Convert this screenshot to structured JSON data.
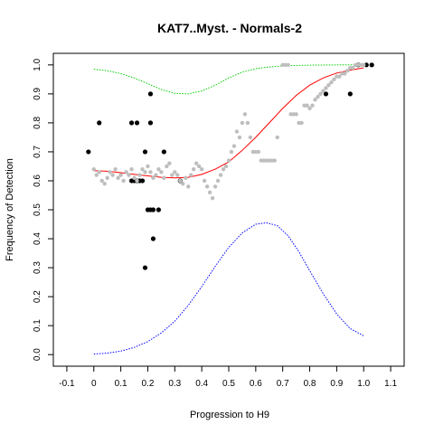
{
  "chart_data": {
    "type": "scatter",
    "title": "KAT7..Myst. - Normals-2",
    "xlabel": "Progression to H9",
    "ylabel": "Frequency of Detection",
    "xlim": [
      -0.15,
      1.15
    ],
    "ylim": [
      -0.04,
      1.04
    ],
    "x_ticks": [
      "-0.1",
      "0",
      "0.1",
      "0.2",
      "0.3",
      "0.4",
      "0.5",
      "0.6",
      "0.7",
      "0.8",
      "0.9",
      "1.0",
      "1.1"
    ],
    "y_ticks": [
      "0.0",
      "0.1",
      "0.2",
      "0.3",
      "0.4",
      "0.5",
      "0.6",
      "0.7",
      "0.8",
      "0.9",
      "1.0"
    ],
    "grid": false,
    "series": [
      {
        "kind": "points",
        "color": "#000000",
        "points": [
          [
            -0.02,
            0.7
          ],
          [
            0.02,
            0.8
          ],
          [
            0.14,
            0.8
          ],
          [
            0.16,
            0.8
          ],
          [
            0.14,
            0.6
          ],
          [
            0.15,
            0.6
          ],
          [
            0.16,
            0.6
          ],
          [
            0.17,
            0.6
          ],
          [
            0.18,
            0.6
          ],
          [
            0.19,
            0.7
          ],
          [
            0.21,
            0.9
          ],
          [
            0.21,
            0.8
          ],
          [
            0.2,
            0.5
          ],
          [
            0.21,
            0.5
          ],
          [
            0.22,
            0.5
          ],
          [
            0.24,
            0.5
          ],
          [
            0.22,
            0.4
          ],
          [
            0.19,
            0.3
          ],
          [
            0.26,
            0.7
          ],
          [
            0.32,
            0.6
          ],
          [
            0.86,
            0.9
          ],
          [
            0.95,
            0.9
          ],
          [
            0.98,
            1.0
          ],
          [
            1.01,
            1.0
          ],
          [
            1.03,
            1.0
          ]
        ]
      },
      {
        "kind": "points",
        "color": "#bebebe",
        "points": [
          [
            0.0,
            0.64
          ],
          [
            0.01,
            0.62
          ],
          [
            0.02,
            0.63
          ],
          [
            0.03,
            0.6
          ],
          [
            0.04,
            0.59
          ],
          [
            0.05,
            0.61
          ],
          [
            0.06,
            0.63
          ],
          [
            0.07,
            0.62
          ],
          [
            0.08,
            0.64
          ],
          [
            0.09,
            0.61
          ],
          [
            0.1,
            0.62
          ],
          [
            0.11,
            0.6
          ],
          [
            0.12,
            0.63
          ],
          [
            0.13,
            0.62
          ],
          [
            0.14,
            0.64
          ],
          [
            0.15,
            0.61
          ],
          [
            0.16,
            0.6
          ],
          [
            0.17,
            0.62
          ],
          [
            0.18,
            0.64
          ],
          [
            0.19,
            0.63
          ],
          [
            0.2,
            0.65
          ],
          [
            0.21,
            0.63
          ],
          [
            0.22,
            0.61
          ],
          [
            0.23,
            0.62
          ],
          [
            0.24,
            0.64
          ],
          [
            0.25,
            0.63
          ],
          [
            0.26,
            0.61
          ],
          [
            0.27,
            0.65
          ],
          [
            0.28,
            0.66
          ],
          [
            0.29,
            0.62
          ],
          [
            0.3,
            0.63
          ],
          [
            0.31,
            0.62
          ],
          [
            0.32,
            0.6
          ],
          [
            0.33,
            0.59
          ],
          [
            0.34,
            0.61
          ],
          [
            0.35,
            0.58
          ],
          [
            0.36,
            0.62
          ],
          [
            0.37,
            0.64
          ],
          [
            0.38,
            0.66
          ],
          [
            0.39,
            0.65
          ],
          [
            0.4,
            0.64
          ],
          [
            0.41,
            0.6
          ],
          [
            0.42,
            0.58
          ],
          [
            0.43,
            0.56
          ],
          [
            0.44,
            0.54
          ],
          [
            0.45,
            0.58
          ],
          [
            0.46,
            0.6
          ],
          [
            0.47,
            0.62
          ],
          [
            0.48,
            0.64
          ],
          [
            0.49,
            0.65
          ],
          [
            0.5,
            0.67
          ],
          [
            0.51,
            0.7
          ],
          [
            0.52,
            0.72
          ],
          [
            0.53,
            0.77
          ],
          [
            0.54,
            0.75
          ],
          [
            0.55,
            0.8
          ],
          [
            0.56,
            0.83
          ],
          [
            0.57,
            0.8
          ],
          [
            0.58,
            0.75
          ],
          [
            0.59,
            0.7
          ],
          [
            0.6,
            0.7
          ],
          [
            0.61,
            0.7
          ],
          [
            0.62,
            0.67
          ],
          [
            0.63,
            0.67
          ],
          [
            0.64,
            0.67
          ],
          [
            0.65,
            0.67
          ],
          [
            0.66,
            0.67
          ],
          [
            0.67,
            0.67
          ],
          [
            0.68,
            0.75
          ],
          [
            0.7,
            1.0
          ],
          [
            0.71,
            1.0
          ],
          [
            0.72,
            1.0
          ],
          [
            0.73,
            0.83
          ],
          [
            0.74,
            0.83
          ],
          [
            0.75,
            0.83
          ],
          [
            0.76,
            0.8
          ],
          [
            0.77,
            0.8
          ],
          [
            0.78,
            0.86
          ],
          [
            0.79,
            0.86
          ],
          [
            0.8,
            0.85
          ],
          [
            0.81,
            0.86
          ],
          [
            0.82,
            0.88
          ],
          [
            0.83,
            0.89
          ],
          [
            0.84,
            0.9
          ],
          [
            0.85,
            0.91
          ],
          [
            0.86,
            0.92
          ],
          [
            0.87,
            0.93
          ],
          [
            0.88,
            0.94
          ],
          [
            0.89,
            0.95
          ],
          [
            0.9,
            0.96
          ],
          [
            0.91,
            0.96
          ],
          [
            0.92,
            0.97
          ],
          [
            0.93,
            0.97
          ],
          [
            0.94,
            0.98
          ],
          [
            0.95,
            0.99
          ],
          [
            0.96,
            0.99
          ],
          [
            0.97,
            1.0
          ],
          [
            0.98,
            1.0
          ],
          [
            0.99,
            1.0
          ],
          [
            1.0,
            1.0
          ]
        ]
      },
      {
        "kind": "line",
        "color": "#ff0000",
        "dashed": false,
        "points": [
          [
            0.0,
            0.635
          ],
          [
            0.05,
            0.633
          ],
          [
            0.1,
            0.628
          ],
          [
            0.15,
            0.622
          ],
          [
            0.2,
            0.617
          ],
          [
            0.25,
            0.612
          ],
          [
            0.3,
            0.61
          ],
          [
            0.35,
            0.612
          ],
          [
            0.4,
            0.622
          ],
          [
            0.45,
            0.64
          ],
          [
            0.5,
            0.665
          ],
          [
            0.55,
            0.705
          ],
          [
            0.6,
            0.75
          ],
          [
            0.65,
            0.8
          ],
          [
            0.7,
            0.85
          ],
          [
            0.75,
            0.895
          ],
          [
            0.8,
            0.93
          ],
          [
            0.85,
            0.955
          ],
          [
            0.9,
            0.972
          ],
          [
            0.95,
            0.982
          ],
          [
            1.0,
            0.99
          ]
        ]
      },
      {
        "kind": "line",
        "color": "#00cc00",
        "dashed": true,
        "points": [
          [
            0.0,
            0.985
          ],
          [
            0.05,
            0.98
          ],
          [
            0.1,
            0.97
          ],
          [
            0.15,
            0.955
          ],
          [
            0.2,
            0.935
          ],
          [
            0.25,
            0.915
          ],
          [
            0.3,
            0.902
          ],
          [
            0.35,
            0.9
          ],
          [
            0.4,
            0.91
          ],
          [
            0.45,
            0.93
          ],
          [
            0.5,
            0.955
          ],
          [
            0.55,
            0.975
          ],
          [
            0.6,
            0.987
          ],
          [
            0.65,
            0.993
          ],
          [
            0.7,
            0.997
          ],
          [
            0.8,
            0.999
          ],
          [
            0.9,
            1.0
          ],
          [
            1.0,
            1.0
          ]
        ]
      },
      {
        "kind": "line",
        "color": "#0000ff",
        "dashed": true,
        "points": [
          [
            0.0,
            0.002
          ],
          [
            0.05,
            0.005
          ],
          [
            0.1,
            0.012
          ],
          [
            0.15,
            0.025
          ],
          [
            0.2,
            0.045
          ],
          [
            0.25,
            0.075
          ],
          [
            0.3,
            0.115
          ],
          [
            0.35,
            0.17
          ],
          [
            0.4,
            0.235
          ],
          [
            0.45,
            0.305
          ],
          [
            0.5,
            0.37
          ],
          [
            0.55,
            0.42
          ],
          [
            0.6,
            0.45
          ],
          [
            0.64,
            0.455
          ],
          [
            0.68,
            0.445
          ],
          [
            0.72,
            0.41
          ],
          [
            0.76,
            0.355
          ],
          [
            0.8,
            0.29
          ],
          [
            0.85,
            0.21
          ],
          [
            0.9,
            0.14
          ],
          [
            0.95,
            0.09
          ],
          [
            1.0,
            0.065
          ]
        ]
      }
    ]
  }
}
